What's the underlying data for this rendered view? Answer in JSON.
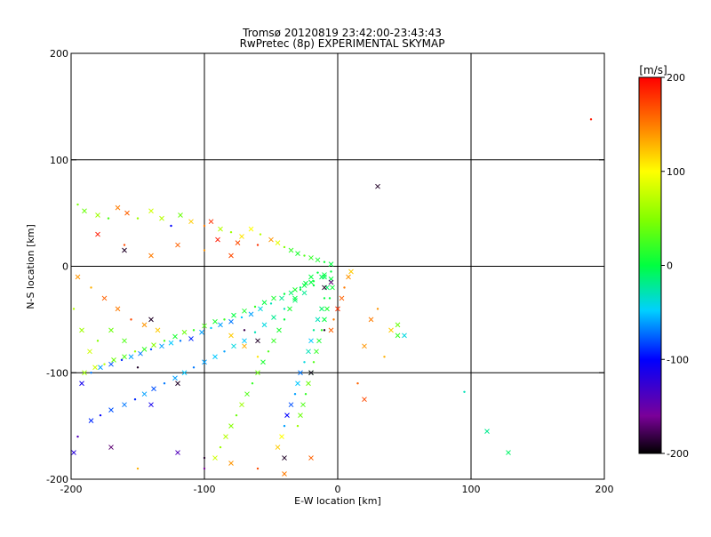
{
  "chart_data": {
    "type": "scatter",
    "title": "Tromsø 20120819 23:42:00-23:43:43",
    "subtitle": "RwPretec (8p) EXPERIMENTAL SKYMAP",
    "xlabel": "E-W location [km]",
    "ylabel": "N-S location [km]",
    "xlim": [
      -200,
      200
    ],
    "ylim": [
      -200,
      200
    ],
    "xticks": [
      -200,
      -100,
      0,
      100,
      200
    ],
    "yticks": [
      -200,
      -100,
      0,
      100,
      200
    ],
    "grid": true,
    "colorbar": {
      "label": "[m/s]",
      "min": -200,
      "max": 200,
      "ticks": [
        200,
        100,
        0,
        -100,
        -200
      ],
      "colormap": "rainbow (black-purple-blue-cyan-green-yellow-red)"
    },
    "marker_types": [
      "x",
      "dot"
    ],
    "series": [
      {
        "points": [
          [
            -195,
            58,
            45
          ],
          [
            -190,
            52,
            40
          ],
          [
            -180,
            48,
            60
          ],
          [
            -172,
            45,
            30
          ],
          [
            -165,
            55,
            150
          ],
          [
            -158,
            50,
            160
          ],
          [
            -150,
            45,
            60
          ],
          [
            -140,
            52,
            80
          ],
          [
            -132,
            45,
            70
          ],
          [
            -125,
            38,
            -100
          ],
          [
            -118,
            48,
            40
          ],
          [
            -110,
            42,
            120
          ],
          [
            -100,
            38,
            150
          ],
          [
            -95,
            42,
            180
          ],
          [
            -88,
            35,
            70
          ],
          [
            -80,
            32,
            60
          ],
          [
            -72,
            28,
            110
          ],
          [
            -65,
            35,
            100
          ],
          [
            -58,
            30,
            70
          ],
          [
            -50,
            25,
            140
          ],
          [
            -45,
            22,
            90
          ],
          [
            -40,
            18,
            50
          ],
          [
            -35,
            15,
            20
          ],
          [
            -30,
            12,
            10
          ],
          [
            -25,
            10,
            30
          ],
          [
            -20,
            8,
            20
          ],
          [
            -15,
            6,
            10
          ],
          [
            -10,
            4,
            5
          ],
          [
            -5,
            2,
            0
          ],
          [
            -192,
            -110,
            -110
          ],
          [
            -185,
            -100,
            -70
          ],
          [
            -178,
            -95,
            -60
          ],
          [
            -170,
            -92,
            -80
          ],
          [
            -162,
            -88,
            -90
          ],
          [
            -155,
            -85,
            -60
          ],
          [
            -148,
            -82,
            -70
          ],
          [
            -140,
            -78,
            -80
          ],
          [
            -132,
            -75,
            -60
          ],
          [
            -125,
            -72,
            -50
          ],
          [
            -118,
            -70,
            -70
          ],
          [
            -110,
            -68,
            -90
          ],
          [
            -102,
            -62,
            -60
          ],
          [
            -95,
            -58,
            -50
          ],
          [
            -88,
            -55,
            -60
          ],
          [
            -80,
            -52,
            -70
          ],
          [
            -72,
            -48,
            -50
          ],
          [
            -65,
            -45,
            -60
          ],
          [
            -58,
            -40,
            -40
          ],
          [
            -50,
            -35,
            -30
          ],
          [
            -42,
            -30,
            -20
          ],
          [
            -35,
            -25,
            -10
          ],
          [
            -28,
            -20,
            -10
          ],
          [
            -20,
            -15,
            0
          ],
          [
            -12,
            -10,
            -5
          ],
          [
            -5,
            -5,
            0
          ],
          [
            -190,
            -100,
            60
          ],
          [
            -182,
            -95,
            80
          ],
          [
            -175,
            -92,
            70
          ],
          [
            -168,
            -88,
            40
          ],
          [
            -160,
            -85,
            30
          ],
          [
            -152,
            -80,
            60
          ],
          [
            -145,
            -78,
            20
          ],
          [
            -138,
            -74,
            50
          ],
          [
            -130,
            -70,
            30
          ],
          [
            -122,
            -66,
            10
          ],
          [
            -115,
            -62,
            40
          ],
          [
            -108,
            -60,
            20
          ],
          [
            -100,
            -56,
            30
          ],
          [
            -92,
            -52,
            10
          ],
          [
            -85,
            -50,
            20
          ],
          [
            -78,
            -46,
            0
          ],
          [
            -70,
            -42,
            10
          ],
          [
            -62,
            -38,
            20
          ],
          [
            -55,
            -34,
            0
          ],
          [
            -48,
            -30,
            10
          ],
          [
            -40,
            -26,
            0
          ],
          [
            -32,
            -22,
            10
          ],
          [
            -25,
            -18,
            0
          ],
          [
            -18,
            -14,
            5
          ],
          [
            -10,
            -8,
            0
          ],
          [
            -185,
            -145,
            -90
          ],
          [
            -178,
            -140,
            -100
          ],
          [
            -170,
            -135,
            -80
          ],
          [
            -160,
            -130,
            -70
          ],
          [
            -152,
            -125,
            -90
          ],
          [
            -145,
            -120,
            -60
          ],
          [
            -138,
            -115,
            -80
          ],
          [
            -130,
            -110,
            -70
          ],
          [
            -122,
            -105,
            -60
          ],
          [
            -115,
            -100,
            -50
          ],
          [
            -108,
            -95,
            -70
          ],
          [
            -100,
            -90,
            -60
          ],
          [
            -92,
            -85,
            -50
          ],
          [
            -85,
            -80,
            -60
          ],
          [
            -78,
            -75,
            -40
          ],
          [
            -70,
            -70,
            -50
          ],
          [
            -62,
            -62,
            -30
          ],
          [
            -55,
            -55,
            -40
          ],
          [
            -48,
            -48,
            -20
          ],
          [
            -40,
            -40,
            -30
          ],
          [
            -32,
            -32,
            -10
          ],
          [
            -25,
            -25,
            -20
          ],
          [
            -18,
            -18,
            0
          ],
          [
            -10,
            -10,
            -5
          ],
          [
            -92,
            -180,
            80
          ],
          [
            -88,
            -170,
            60
          ],
          [
            -84,
            -160,
            70
          ],
          [
            -80,
            -150,
            50
          ],
          [
            -76,
            -140,
            40
          ],
          [
            -72,
            -130,
            60
          ],
          [
            -68,
            -120,
            30
          ],
          [
            -64,
            -110,
            20
          ],
          [
            -60,
            -100,
            40
          ],
          [
            -56,
            -90,
            10
          ],
          [
            -52,
            -80,
            30
          ],
          [
            -48,
            -70,
            20
          ],
          [
            -44,
            -60,
            10
          ],
          [
            -40,
            -50,
            0
          ],
          [
            -36,
            -40,
            10
          ],
          [
            -32,
            -30,
            0
          ],
          [
            -28,
            -22,
            5
          ],
          [
            -24,
            -16,
            0
          ],
          [
            -20,
            -10,
            0
          ],
          [
            -15,
            -6,
            0
          ],
          [
            -45,
            -170,
            120
          ],
          [
            -42,
            -160,
            100
          ],
          [
            -40,
            -150,
            -60
          ],
          [
            -38,
            -140,
            -100
          ],
          [
            -35,
            -130,
            -80
          ],
          [
            -32,
            -120,
            -60
          ],
          [
            -30,
            -110,
            -50
          ],
          [
            -28,
            -100,
            -70
          ],
          [
            -25,
            -90,
            -40
          ],
          [
            -22,
            -80,
            -30
          ],
          [
            -20,
            -70,
            -50
          ],
          [
            -18,
            -60,
            -20
          ],
          [
            -15,
            -50,
            -30
          ],
          [
            -12,
            -40,
            -10
          ],
          [
            -10,
            -30,
            0
          ],
          [
            -8,
            -20,
            -10
          ],
          [
            -5,
            -12,
            0
          ],
          [
            -30,
            -150,
            60
          ],
          [
            -28,
            -140,
            40
          ],
          [
            -26,
            -130,
            30
          ],
          [
            -24,
            -120,
            20
          ],
          [
            -22,
            -110,
            40
          ],
          [
            -20,
            -100,
            10
          ],
          [
            -18,
            -90,
            30
          ],
          [
            -16,
            -80,
            20
          ],
          [
            -14,
            -70,
            10
          ],
          [
            -12,
            -60,
            20
          ],
          [
            -10,
            -50,
            0
          ],
          [
            -8,
            -40,
            10
          ],
          [
            -6,
            -30,
            0
          ],
          [
            -4,
            -20,
            5
          ],
          [
            -5,
            -60,
            160
          ],
          [
            -3,
            -50,
            150
          ],
          [
            0,
            -40,
            180
          ],
          [
            3,
            -30,
            160
          ],
          [
            5,
            -20,
            150
          ],
          [
            8,
            -10,
            140
          ],
          [
            10,
            -5,
            120
          ],
          [
            -60,
            -190,
            170
          ],
          [
            -40,
            -195,
            150
          ],
          [
            -20,
            -180,
            160
          ],
          [
            -150,
            -190,
            130
          ],
          [
            -170,
            -170,
            -170
          ],
          [
            -120,
            -175,
            -140
          ],
          [
            -100,
            -190,
            -160
          ],
          [
            -80,
            -185,
            140
          ],
          [
            -140,
            -130,
            -110
          ],
          [
            -195,
            -160,
            -140
          ],
          [
            -198,
            -175,
            -120
          ],
          [
            -195,
            -10,
            140
          ],
          [
            -185,
            -20,
            130
          ],
          [
            -175,
            -30,
            160
          ],
          [
            -165,
            -40,
            150
          ],
          [
            -155,
            -50,
            170
          ],
          [
            -145,
            -55,
            140
          ],
          [
            -135,
            -60,
            120
          ],
          [
            -60,
            -85,
            110
          ],
          [
            -70,
            -75,
            130
          ],
          [
            -80,
            -65,
            120
          ],
          [
            -198,
            -40,
            70
          ],
          [
            -192,
            -60,
            60
          ],
          [
            -186,
            -80,
            80
          ],
          [
            -180,
            -70,
            50
          ],
          [
            -170,
            -60,
            40
          ],
          [
            -160,
            -70,
            30
          ],
          [
            -60,
            20,
            180
          ],
          [
            -80,
            10,
            170
          ],
          [
            -120,
            20,
            160
          ],
          [
            -160,
            20,
            170
          ],
          [
            -180,
            30,
            190
          ],
          [
            -140,
            10,
            150
          ],
          [
            -100,
            15,
            140
          ],
          [
            -90,
            25,
            190
          ],
          [
            -75,
            22,
            170
          ],
          [
            -100,
            -180,
            -190
          ],
          [
            -40,
            -180,
            -190
          ],
          [
            -20,
            -100,
            -190
          ],
          [
            -10,
            -60,
            -190
          ],
          [
            -120,
            -110,
            -190
          ],
          [
            -60,
            -70,
            -190
          ],
          [
            -150,
            -95,
            -190
          ],
          [
            -160,
            15,
            -190
          ],
          [
            -140,
            -50,
            -190
          ],
          [
            -70,
            -60,
            -180
          ],
          [
            -10,
            -20,
            -190
          ],
          [
            -5,
            -15,
            -170
          ],
          [
            15,
            -110,
            160
          ],
          [
            20,
            -125,
            170
          ],
          [
            25,
            -50,
            150
          ],
          [
            30,
            -40,
            140
          ],
          [
            40,
            -60,
            120
          ],
          [
            20,
            -75,
            140
          ],
          [
            35,
            -85,
            130
          ],
          [
            45,
            -65,
            20
          ],
          [
            50,
            -65,
            -40
          ],
          [
            95,
            -118,
            -30
          ],
          [
            112,
            -155,
            -20
          ],
          [
            128,
            -175,
            -10
          ],
          [
            190,
            138,
            190
          ],
          [
            30,
            75,
            -190
          ],
          [
            45,
            -55,
            40
          ]
        ]
      }
    ]
  }
}
